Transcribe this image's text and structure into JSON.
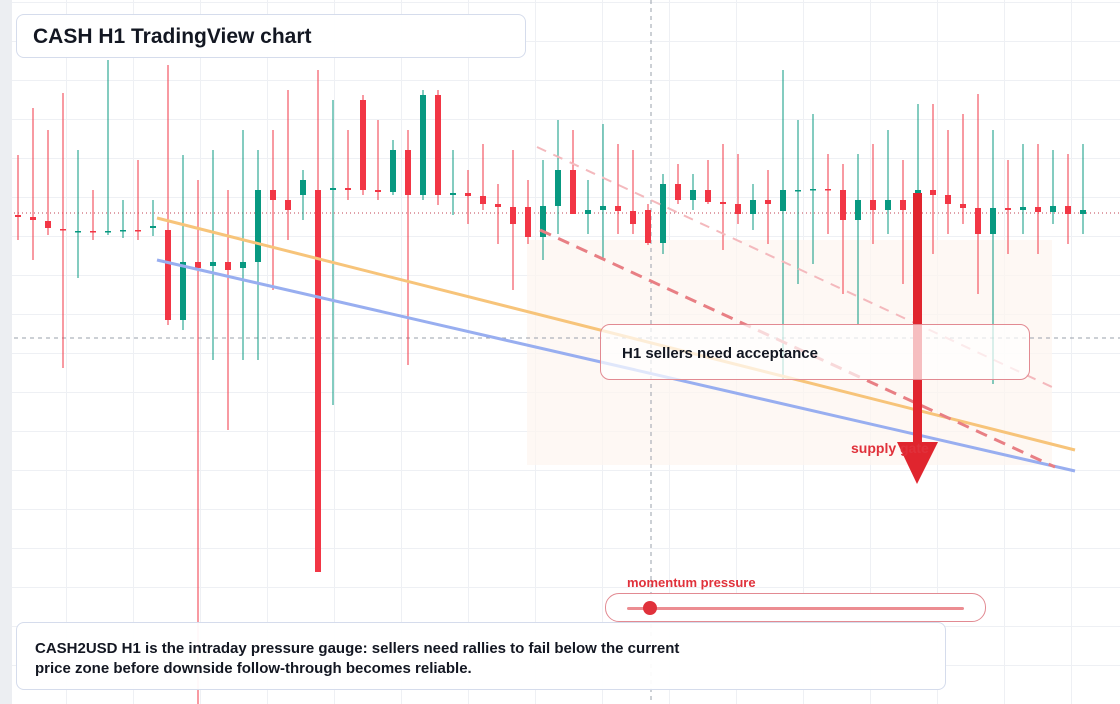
{
  "chart_data": {
    "type": "candlestick",
    "title": "CASH H1 TradingView chart",
    "annotations": [
      "H1 sellers need acceptance",
      "supply gate",
      "momentum pressure"
    ],
    "caption": "CASH2USD H1 is the intraday pressure gauge: sellers need rallies to fail below the current price zone before downside follow-through becomes reliable.",
    "up_color": "#089981",
    "down_color": "#f23645",
    "ylim": [
      0,
      704
    ],
    "open": [
      489,
      487,
      483,
      475,
      473,
      473,
      472,
      473,
      474,
      476,
      474,
      384,
      442,
      438,
      442,
      436,
      442,
      514,
      504,
      509,
      514,
      514,
      516,
      604,
      514,
      512,
      554,
      509,
      609,
      509,
      511,
      508,
      500,
      497,
      497,
      467,
      498,
      534,
      490,
      494,
      498,
      493,
      494,
      461,
      520,
      504,
      514,
      502,
      500,
      490,
      504,
      493,
      514,
      514,
      515,
      514,
      484,
      504,
      494,
      504,
      494,
      514,
      509,
      500,
      496,
      470,
      496,
      494,
      497,
      492,
      498,
      490
    ],
    "high": [
      549,
      596,
      574,
      611,
      554,
      514,
      644,
      504,
      544,
      504,
      639,
      549,
      524,
      554,
      514,
      574,
      554,
      574,
      614,
      534,
      634,
      604,
      574,
      609,
      584,
      564,
      574,
      614,
      614,
      554,
      534,
      560,
      520,
      554,
      524,
      544,
      584,
      574,
      524,
      580,
      560,
      554,
      500,
      530,
      540,
      530,
      544,
      560,
      550,
      520,
      534,
      634,
      584,
      590,
      550,
      540,
      550,
      560,
      574,
      544,
      600,
      600,
      574,
      590,
      610,
      574,
      544,
      560,
      560,
      554,
      550,
      560
    ],
    "low": [
      464,
      444,
      469,
      336,
      426,
      464,
      469,
      466,
      464,
      468,
      379,
      374,
      0,
      344,
      274,
      344,
      344,
      414,
      464,
      484,
      132,
      299,
      504,
      509,
      504,
      509,
      339,
      504,
      499,
      489,
      480,
      494,
      460,
      414,
      460,
      444,
      470,
      494,
      470,
      444,
      470,
      470,
      459,
      450,
      500,
      494,
      500,
      454,
      480,
      474,
      460,
      324,
      420,
      440,
      470,
      410,
      380,
      460,
      470,
      420,
      410,
      450,
      470,
      480,
      410,
      320,
      450,
      470,
      450,
      480,
      460,
      470
    ],
    "close": [
      487,
      484,
      476,
      474,
      473,
      472,
      473,
      474,
      473,
      478,
      384,
      442,
      436,
      442,
      434,
      442,
      514,
      504,
      494,
      524,
      132,
      516,
      514,
      514,
      512,
      554,
      509,
      609,
      509,
      511,
      508,
      500,
      497,
      480,
      467,
      498,
      534,
      490,
      494,
      498,
      493,
      480,
      461,
      520,
      504,
      514,
      502,
      500,
      490,
      504,
      500,
      514,
      514,
      515,
      514,
      484,
      504,
      494,
      504,
      494,
      514,
      509,
      500,
      496,
      470,
      496,
      494,
      497,
      492,
      498,
      490,
      494
    ]
  }
}
